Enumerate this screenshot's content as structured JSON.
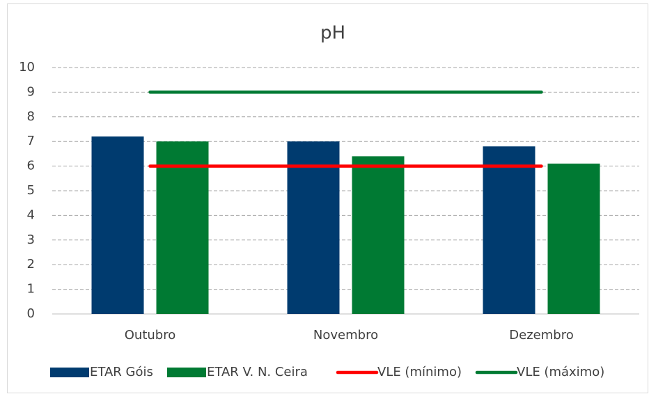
{
  "chart_data": {
    "type": "bar",
    "title": "pH",
    "categories": [
      "Outubro",
      "Novembro",
      "Dezembro"
    ],
    "series": [
      {
        "name": "ETAR Góis",
        "type": "bar",
        "color": "#003b6f",
        "values": [
          7.2,
          7.0,
          6.8
        ]
      },
      {
        "name": "ETAR V. N. Ceira",
        "type": "bar",
        "color": "#007a33",
        "values": [
          7.0,
          6.4,
          6.1
        ]
      },
      {
        "name": "VLE (mínimo)",
        "type": "line",
        "color": "#ff0000",
        "values": [
          6,
          6,
          6
        ]
      },
      {
        "name": "VLE (máximo)",
        "type": "line",
        "color": "#007a33",
        "values": [
          9,
          9,
          9
        ]
      }
    ],
    "ylim": [
      0,
      10
    ],
    "yticks": [
      0,
      1,
      2,
      3,
      4,
      5,
      6,
      7,
      8,
      9,
      10
    ],
    "grid": true,
    "legend": "bottom"
  }
}
